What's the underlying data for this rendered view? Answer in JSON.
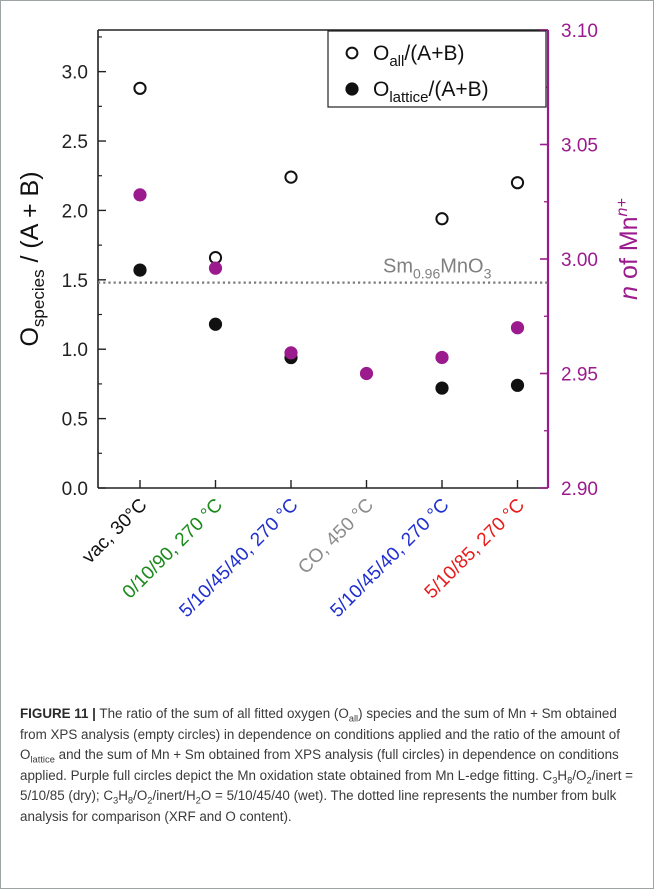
{
  "chart_data": {
    "type": "scatter",
    "left_axis": {
      "label": "O_species / (A + B)",
      "label_main": "O",
      "label_sub": "species",
      "label_rest": " / (A + B)",
      "range": [
        0.0,
        3.3
      ],
      "ticks": [
        "0.0",
        "0.5",
        "1.0",
        "1.5",
        "2.0",
        "2.5",
        "3.0"
      ],
      "tick_values": [
        0.0,
        0.5,
        1.0,
        1.5,
        2.0,
        2.5,
        3.0
      ]
    },
    "right_axis": {
      "label": "n of Mn^n+",
      "label_n": "n",
      "label_mid": " of Mn",
      "label_sup": "n+",
      "range": [
        2.9,
        3.1
      ],
      "ticks": [
        "2.90",
        "2.95",
        "3.00",
        "3.05",
        "3.10"
      ],
      "tick_values": [
        2.9,
        2.95,
        3.0,
        3.05,
        3.1
      ],
      "color": "#9b1b8e"
    },
    "categories": [
      {
        "label": "vac, 30°C",
        "color": "#111111"
      },
      {
        "label": "0/10/90, 270 °C",
        "color": "#1a8a1a"
      },
      {
        "label": "5/10/45/40, 270 °C",
        "color": "#1f2fd0"
      },
      {
        "label": "CO, 450 °C",
        "color": "#8c8c8c"
      },
      {
        "label": "5/10/45/40, 270 °C",
        "color": "#1f2fd0"
      },
      {
        "label": "5/10/85, 270 °C",
        "color": "#e81b1b"
      }
    ],
    "series": [
      {
        "name": "O_all/(A+B)",
        "marker": "open-circle",
        "axis": "left",
        "values": [
          2.88,
          1.66,
          2.24,
          null,
          1.94,
          2.2
        ]
      },
      {
        "name": "O_lattice/(A+B)",
        "marker": "filled-circle",
        "axis": "left",
        "values": [
          1.57,
          1.18,
          0.94,
          null,
          0.72,
          0.74
        ]
      },
      {
        "marker": "filled-circle",
        "axis": "right",
        "color": "#9b1b8e",
        "values": [
          3.028,
          2.996,
          2.959,
          2.95,
          2.957,
          2.97
        ]
      }
    ],
    "legend": {
      "position": "top-right",
      "entries": [
        {
          "main": "O",
          "sub": "all",
          "rest": "/(A+B)",
          "marker": "open-circle"
        },
        {
          "main": "O",
          "sub": "lattice",
          "rest": "/(A+B)",
          "marker": "filled-circle"
        }
      ]
    },
    "reference_line": {
      "value": 1.48,
      "axis": "left",
      "style": "dotted",
      "label_main": "Sm",
      "label_sub": "0.96",
      "label_rest": "MnO",
      "label_sub2": "3"
    }
  },
  "caption": {
    "figure_label": "FIGURE 11 |",
    "text": " The ratio of the sum of all fitted oxygen (O_all) species and the sum of Mn + Sm obtained from XPS analysis (empty circles) in dependence on conditions applied and the ratio of the amount of O_lattice and the sum of Mn + Sm obtained from XPS analysis (full circles) in dependence on conditions applied. Purple full circles depict the Mn oxidation state obtained from Mn L-edge fitting. C3H8/O2/inert = 5/10/85 (dry); C3H8/O2/inert/H2O = 5/10/45/40 (wet). The dotted line represents the number from bulk analysis for comparison (XRF and O content).",
    "p1": " The ratio of the sum of all fitted oxygen (O",
    "s1": "all",
    "p2": ") species and the sum of Mn + Sm obtained from XPS analysis (empty circles) in dependence on conditions applied and the ratio of the amount of O",
    "s2": "lattice",
    "p3": " and the sum of Mn + Sm obtained from XPS analysis (full circles) in dependence on conditions applied. Purple full circles depict the Mn oxidation state obtained from Mn L-edge fitting. C",
    "s3": "3",
    "p4": "H",
    "s4": "8",
    "p5": "/O",
    "s5": "2",
    "p6": "/inert = 5/10/85 (dry); C",
    "s6": "3",
    "p7": "H",
    "s7": "8",
    "p8": "/O",
    "s8": "2",
    "p9": "/inert/H",
    "s9": "2",
    "p10": "O = 5/10/45/40 (wet). The dotted line represents the number from bulk analysis for comparison (XRF and O content)."
  }
}
